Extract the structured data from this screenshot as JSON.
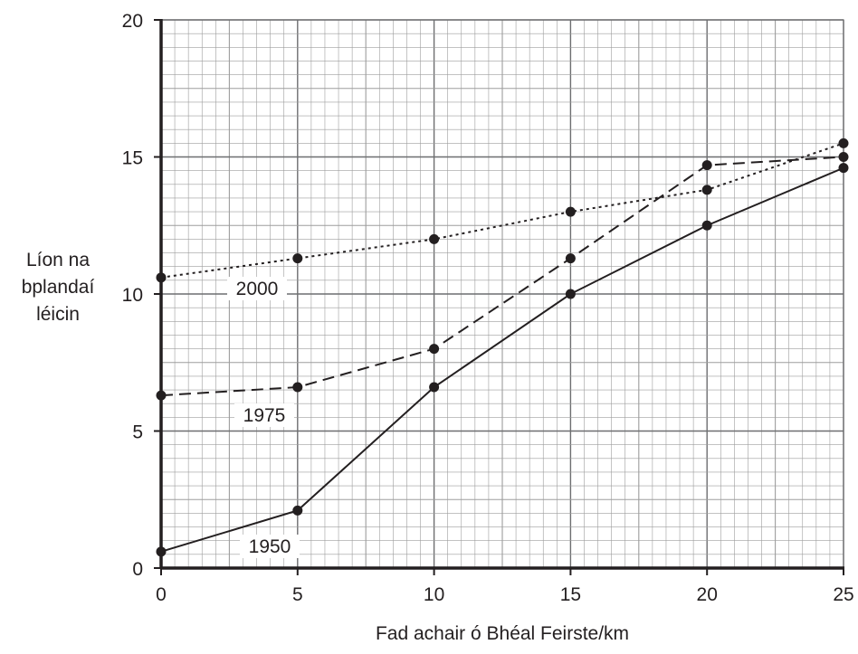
{
  "chart_data": {
    "type": "line",
    "xlabel": "Fad achair ó Bhéal Feirste/km",
    "ylabel_lines": [
      "Líon na",
      "bplandaí",
      "léicin"
    ],
    "x_ticks": [
      0,
      5,
      10,
      15,
      20,
      25
    ],
    "y_ticks": [
      0,
      5,
      10,
      15,
      20
    ],
    "xlim": [
      0,
      25
    ],
    "ylim": [
      0,
      20
    ],
    "grid": true,
    "series": [
      {
        "name": "1950",
        "style": "solid",
        "x": [
          0,
          5,
          10,
          15,
          20,
          25
        ],
        "y": [
          0.6,
          2.1,
          6.6,
          10.0,
          12.5,
          14.6
        ]
      },
      {
        "name": "1975",
        "style": "dashed",
        "x": [
          0,
          5,
          10,
          15,
          20,
          25
        ],
        "y": [
          6.3,
          6.6,
          8.0,
          11.3,
          14.7,
          15.0
        ]
      },
      {
        "name": "2000",
        "style": "dotted",
        "x": [
          0,
          5,
          10,
          15,
          20,
          25
        ],
        "y": [
          10.6,
          11.3,
          12.0,
          13.0,
          13.8,
          15.5
        ]
      }
    ],
    "colors": {
      "ink": "#231f20",
      "minor_grid": "#9d9d9d",
      "major_grid": "#6d6e70"
    }
  }
}
